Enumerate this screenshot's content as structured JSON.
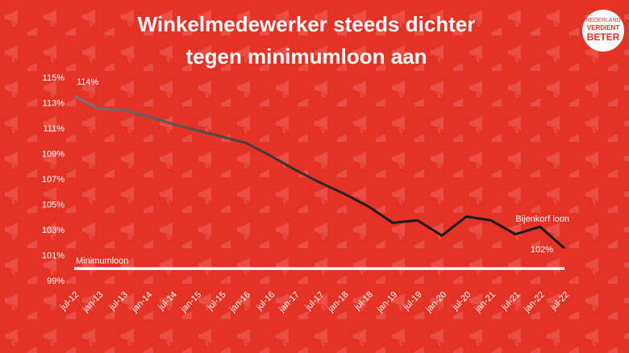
{
  "chart_data": {
    "type": "line",
    "title": [
      "Winkelmedewerker steeds dichter",
      "tegen minimumloon aan"
    ],
    "categories": [
      "jul-12",
      "jan-13",
      "jul-13",
      "jan-14",
      "jul-14",
      "jan-15",
      "jul-15",
      "jan-16",
      "jul-16",
      "jan-17",
      "jul-17",
      "jan-18",
      "jul-18",
      "jan-19",
      "jul-19",
      "jan-20",
      "jul-20",
      "jan-21",
      "jul-21",
      "jan-22",
      "jul-22"
    ],
    "series": [
      {
        "name": "Bijenkorf loon",
        "color": "#1a1a1a",
        "values": [
          113.6,
          112.6,
          112.5,
          112.0,
          111.4,
          110.9,
          110.4,
          109.9,
          108.9,
          107.8,
          106.8,
          105.9,
          104.9,
          103.6,
          103.8,
          102.6,
          104.1,
          103.8,
          102.7,
          103.3,
          101.6
        ],
        "value_labels": [
          "114%",
          null,
          null,
          null,
          null,
          null,
          null,
          null,
          null,
          null,
          null,
          null,
          null,
          null,
          null,
          null,
          null,
          null,
          null,
          null,
          "102%"
        ]
      },
      {
        "name": "Minimumloon",
        "color": "#ffffff",
        "values": [
          100,
          100,
          100,
          100,
          100,
          100,
          100,
          100,
          100,
          100,
          100,
          100,
          100,
          100,
          100,
          100,
          100,
          100,
          100,
          100,
          100
        ]
      }
    ],
    "ylim": [
      99,
      115
    ],
    "yticks": [
      {
        "value": 99,
        "label": "99%"
      },
      {
        "value": 101,
        "label": "101%"
      },
      {
        "value": 103,
        "label": "103%"
      },
      {
        "value": 105,
        "label": "105%"
      },
      {
        "value": 107,
        "label": "107%"
      },
      {
        "value": 109,
        "label": "109%"
      },
      {
        "value": 111,
        "label": "111%"
      },
      {
        "value": 113,
        "label": "113%"
      },
      {
        "value": 115,
        "label": "115%"
      }
    ],
    "grid": false
  },
  "logo": {
    "lines": [
      "NEDERLAND",
      "VERDIENT",
      "BETER"
    ]
  }
}
